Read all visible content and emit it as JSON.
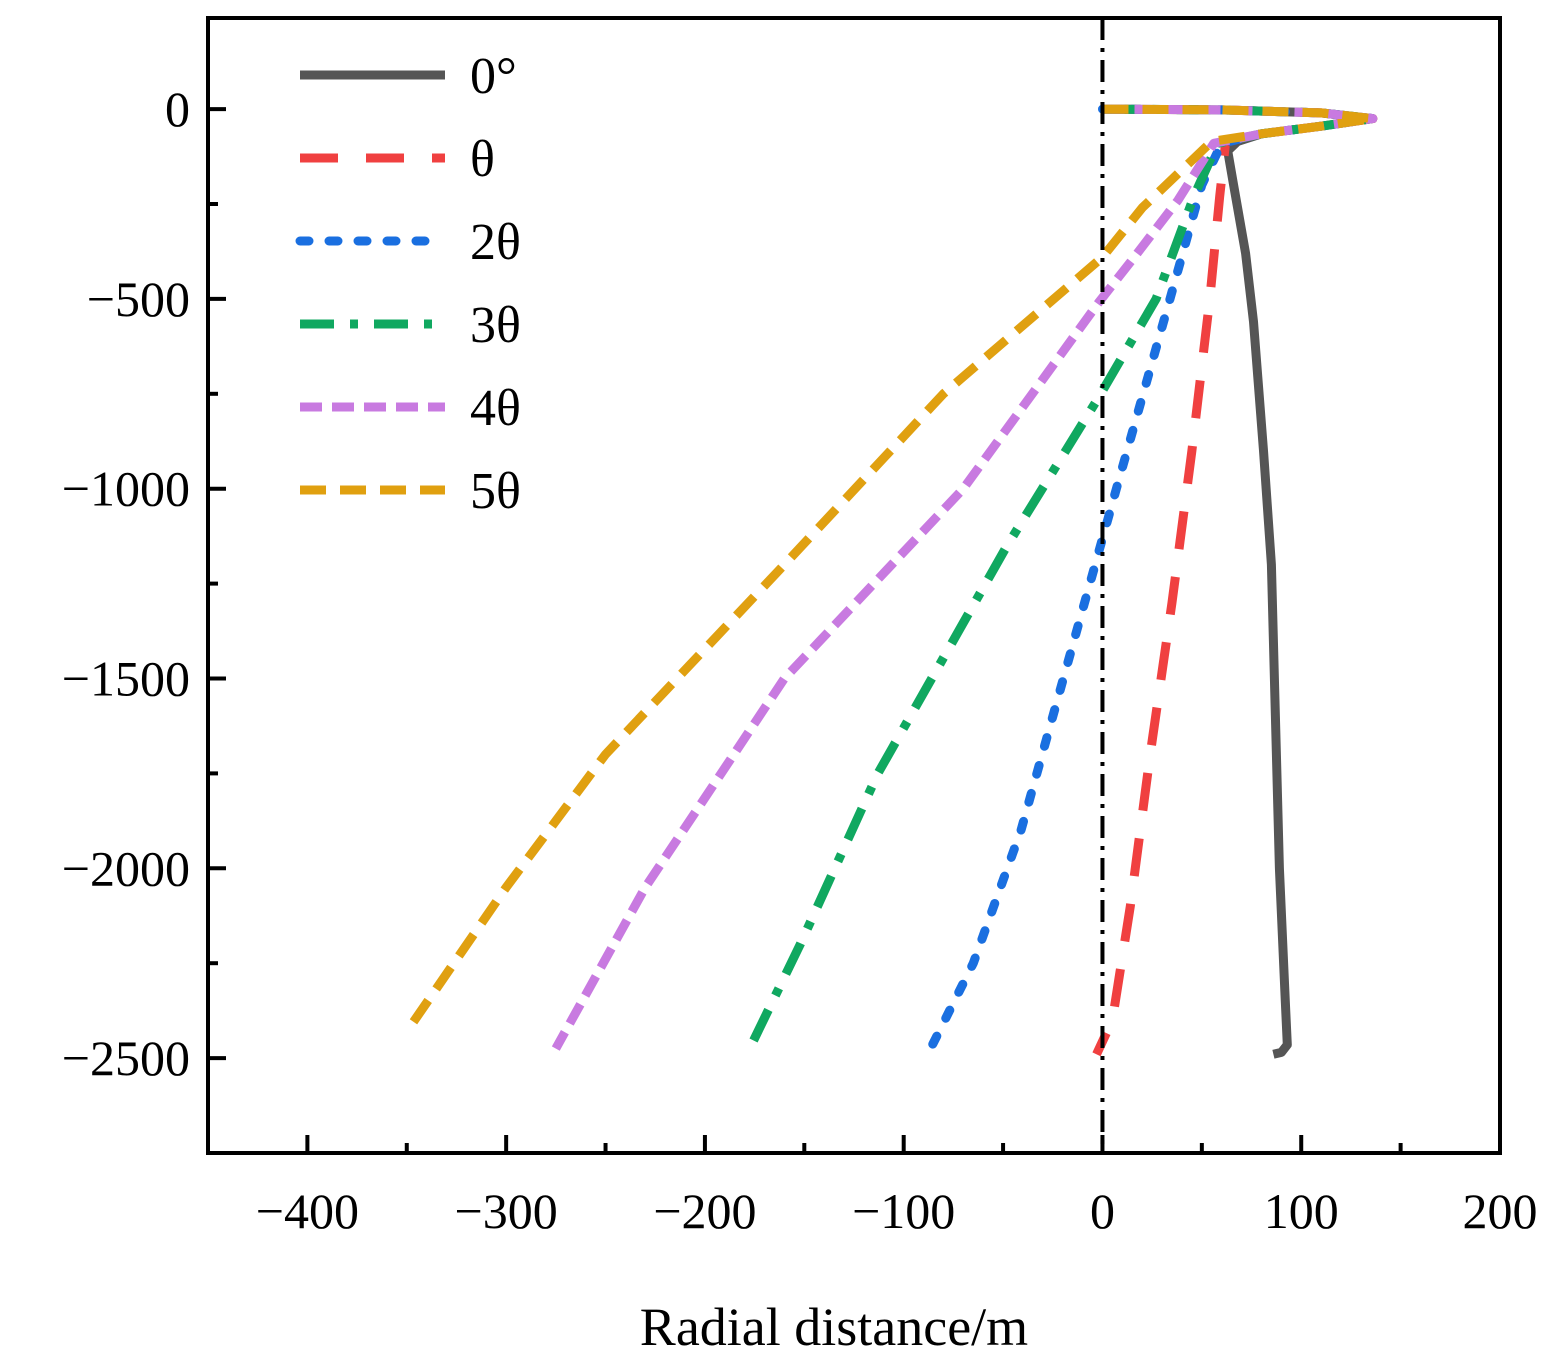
{
  "chart_data": {
    "type": "line",
    "title": "",
    "xlabel": "Radial distance/m",
    "ylabel": "",
    "xlim": [
      -450,
      200
    ],
    "ylim": [
      -2750,
      240
    ],
    "xticks": [
      -400,
      -300,
      -200,
      -100,
      0,
      100,
      200
    ],
    "yticks": [
      0,
      -500,
      -1000,
      -1500,
      -2000,
      -2500
    ],
    "xtick_labels": [
      "−400",
      "−300",
      "−200",
      "−100",
      "0",
      "100",
      "200"
    ],
    "ytick_labels": [
      "0",
      "−500",
      "−1000",
      "−1500",
      "−2000",
      "−2500"
    ],
    "legend_position": "top-left",
    "reference_line": {
      "x": 0,
      "style": "dash-dot",
      "color": "#000000"
    },
    "series": [
      {
        "name": "0°",
        "color": "#555555",
        "dash": "solid",
        "points": [
          [
            0,
            0
          ],
          [
            60,
            -2
          ],
          [
            110,
            -10
          ],
          [
            136,
            -25
          ],
          [
            110,
            -45
          ],
          [
            80,
            -65
          ],
          [
            68,
            -85
          ],
          [
            63,
            -110
          ],
          [
            66,
            -200
          ],
          [
            72,
            -380
          ],
          [
            76,
            -560
          ],
          [
            81,
            -900
          ],
          [
            85,
            -1200
          ],
          [
            87,
            -1600
          ],
          [
            89,
            -2000
          ],
          [
            92,
            -2350
          ],
          [
            93,
            -2465
          ],
          [
            90,
            -2485
          ],
          [
            86,
            -2490
          ]
        ]
      },
      {
        "name": "θ",
        "color": "#f04040",
        "dash": "longdash",
        "points": [
          [
            0,
            0
          ],
          [
            60,
            -2
          ],
          [
            110,
            -10
          ],
          [
            136,
            -25
          ],
          [
            110,
            -45
          ],
          [
            80,
            -65
          ],
          [
            62,
            -85
          ],
          [
            59,
            -230
          ],
          [
            54,
            -500
          ],
          [
            45,
            -900
          ],
          [
            35,
            -1300
          ],
          [
            24,
            -1700
          ],
          [
            14,
            -2100
          ],
          [
            5,
            -2400
          ],
          [
            -3,
            -2490
          ]
        ]
      },
      {
        "name": "2θ",
        "color": "#1a6fe0",
        "dash": "dot",
        "points": [
          [
            0,
            0
          ],
          [
            60,
            -2
          ],
          [
            110,
            -10
          ],
          [
            136,
            -25
          ],
          [
            110,
            -45
          ],
          [
            80,
            -65
          ],
          [
            60,
            -90
          ],
          [
            50,
            -200
          ],
          [
            34,
            -500
          ],
          [
            7,
            -1000
          ],
          [
            -17,
            -1450
          ],
          [
            -41,
            -1900
          ],
          [
            -65,
            -2250
          ],
          [
            -86,
            -2470
          ]
        ]
      },
      {
        "name": "3θ",
        "color": "#10a860",
        "dash": "dashdot",
        "points": [
          [
            0,
            0
          ],
          [
            60,
            -2
          ],
          [
            110,
            -10
          ],
          [
            136,
            -25
          ],
          [
            110,
            -45
          ],
          [
            80,
            -65
          ],
          [
            58,
            -90
          ],
          [
            46,
            -230
          ],
          [
            27,
            -500
          ],
          [
            -2,
            -760
          ],
          [
            -48,
            -1150
          ],
          [
            -113,
            -1750
          ],
          [
            -152,
            -2200
          ],
          [
            -178,
            -2480
          ]
        ]
      },
      {
        "name": "4θ",
        "color": "#c87ae0",
        "dash": "shortdash",
        "points": [
          [
            0,
            0
          ],
          [
            60,
            -2
          ],
          [
            110,
            -10
          ],
          [
            136,
            -25
          ],
          [
            110,
            -45
          ],
          [
            80,
            -65
          ],
          [
            56,
            -90
          ],
          [
            38,
            -240
          ],
          [
            16,
            -390
          ],
          [
            -2,
            -510
          ],
          [
            -70,
            -1000
          ],
          [
            -160,
            -1500
          ],
          [
            -230,
            -2050
          ],
          [
            -275,
            -2475
          ]
        ]
      },
      {
        "name": "5θ",
        "color": "#e0a010",
        "dash": "dash",
        "points": [
          [
            0,
            0
          ],
          [
            60,
            -2
          ],
          [
            110,
            -10
          ],
          [
            136,
            -25
          ],
          [
            110,
            -45
          ],
          [
            80,
            -65
          ],
          [
            55,
            -85
          ],
          [
            40,
            -160
          ],
          [
            20,
            -260
          ],
          [
            0,
            -390
          ],
          [
            -80,
            -750
          ],
          [
            -160,
            -1200
          ],
          [
            -250,
            -1700
          ],
          [
            -300,
            -2050
          ],
          [
            -350,
            -2430
          ]
        ]
      }
    ]
  }
}
